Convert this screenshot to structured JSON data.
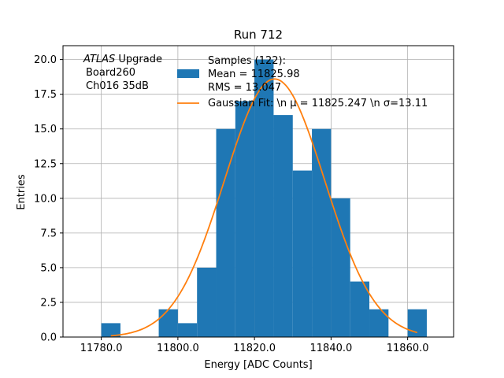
{
  "chart_data": {
    "type": "bar",
    "title": "Run 712",
    "xlabel": "Energy [ADC Counts]",
    "ylabel": "Entries",
    "xlim": [
      11770,
      11872
    ],
    "ylim": [
      0,
      21
    ],
    "grid": true,
    "xticks": [
      11780,
      11800,
      11820,
      11840,
      11860
    ],
    "xtick_labels": [
      "11780.0",
      "11800.0",
      "11820.0",
      "11840.0",
      "11860.0"
    ],
    "yticks": [
      0,
      2.5,
      5,
      7.5,
      10,
      12.5,
      15,
      17.5,
      20
    ],
    "ytick_labels": [
      "0.0",
      "2.5",
      "5.0",
      "7.5",
      "10.0",
      "12.5",
      "15.0",
      "17.5",
      "20.0"
    ],
    "histogram": {
      "name": "Samples (122):\n Mean = 11825.98\n RMS = 13.047",
      "color": "#1f77b4",
      "bin_edges": [
        11780,
        11785,
        11790,
        11795,
        11800,
        11805,
        11810,
        11815,
        11820,
        11825,
        11830,
        11835,
        11840,
        11845,
        11850,
        11855,
        11860,
        11865
      ],
      "counts": [
        1,
        0,
        0,
        2,
        1,
        5,
        15,
        17,
        20,
        16,
        12,
        15,
        10,
        4,
        2,
        0,
        2
      ]
    },
    "fit": {
      "name": "Gaussian Fit: \\n μ = 11825.247 \\n σ=13.11",
      "color": "#ff7f0e",
      "mu": 11825.247,
      "sigma": 13.11,
      "amplitude": 18.6,
      "x_range": [
        11782.5,
        11862.5
      ]
    },
    "legend_placement": "top-center",
    "annotation": [
      "ATLAS Upgrade",
      "Board260",
      "Ch016 35dB"
    ]
  }
}
